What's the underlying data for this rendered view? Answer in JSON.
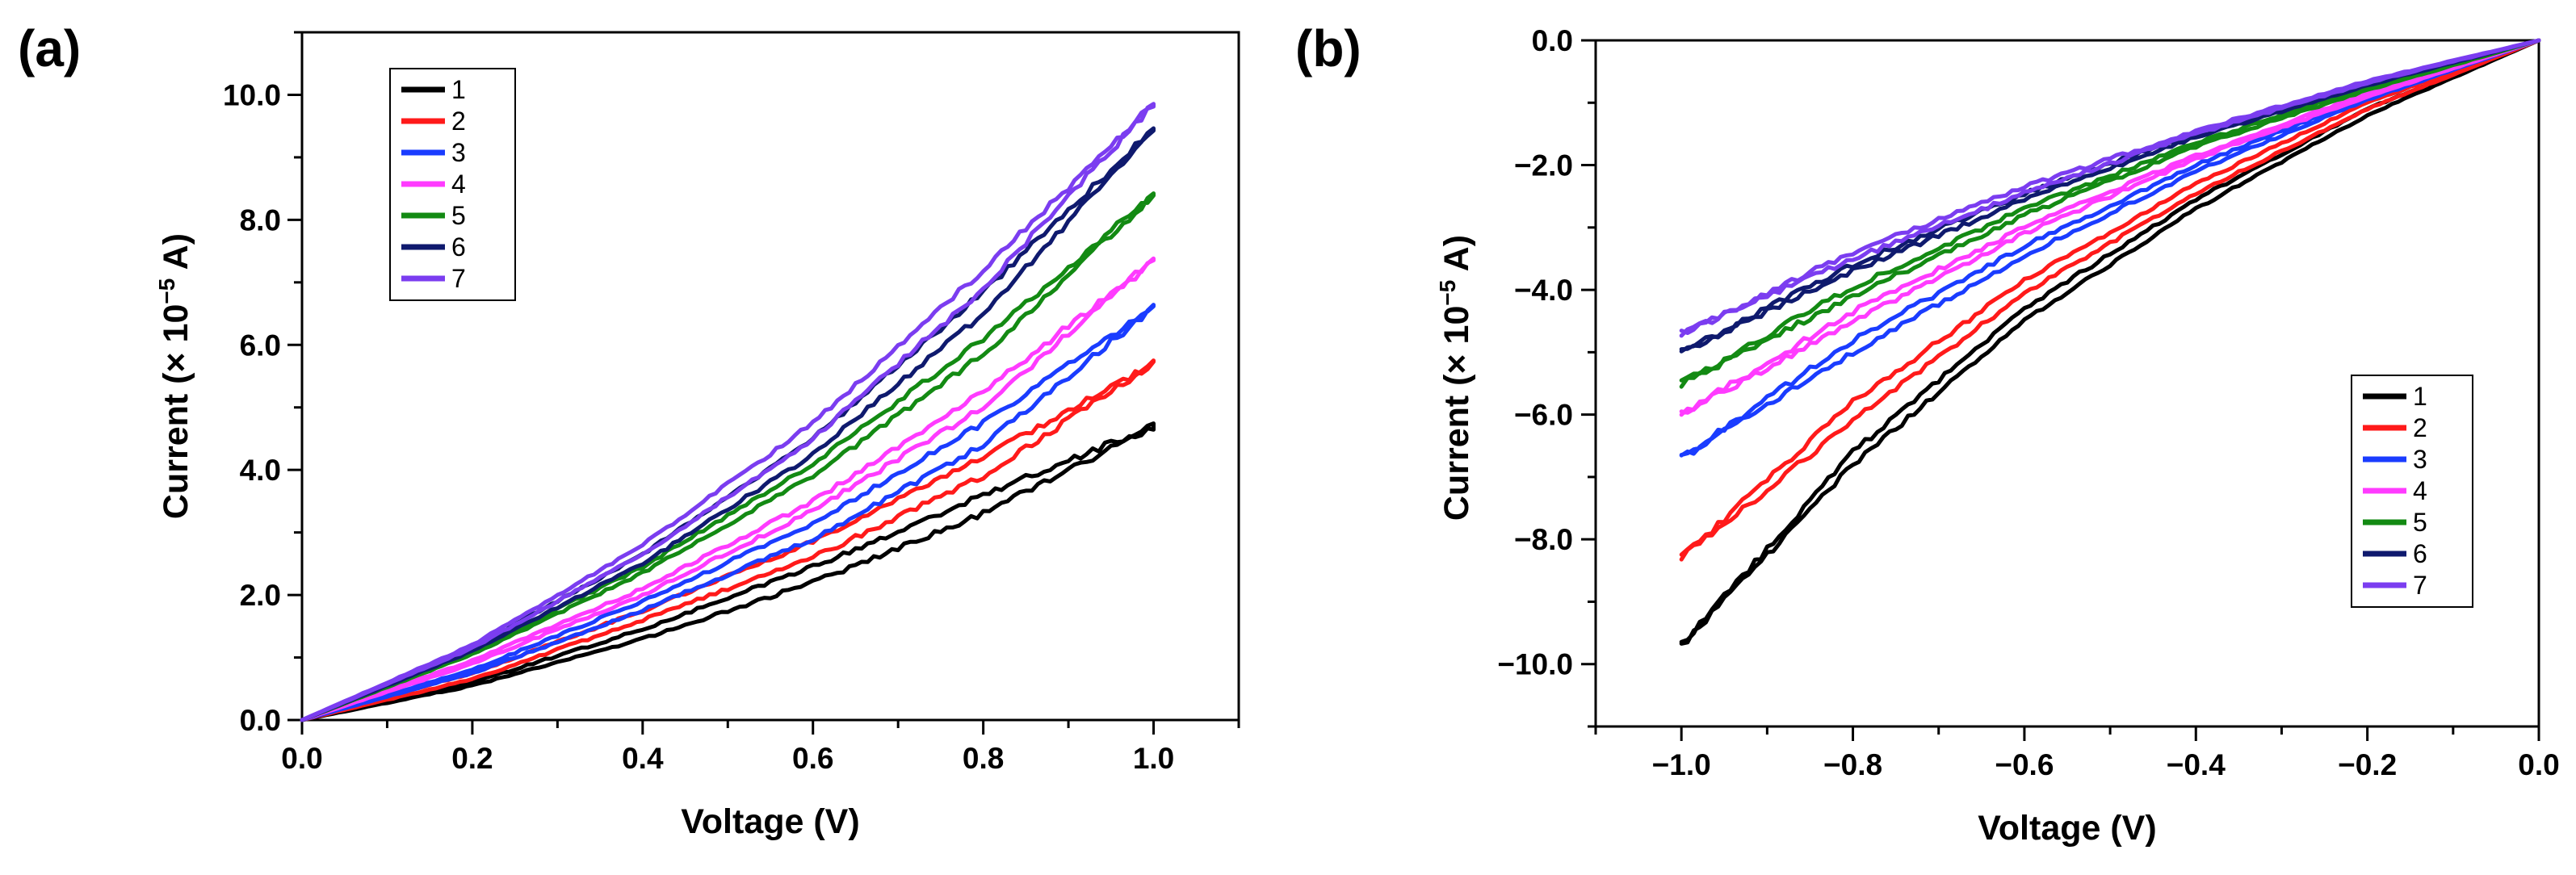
{
  "chart_data": [
    {
      "type": "line",
      "panel_label": "(a)",
      "title": "",
      "xlabel": "Voltage (V)",
      "ylabel": {
        "prefix": "Current (× 10",
        "exponent": "−5",
        "suffix": " A)"
      },
      "xlim": [
        0.0,
        1.1
      ],
      "ylim": [
        0.0,
        11.0
      ],
      "x_ticks": [
        0.0,
        0.2,
        0.4,
        0.6,
        0.8,
        1.0
      ],
      "x_tick_labels": [
        "0.0",
        "0.2",
        "0.4",
        "0.6",
        "0.8",
        "1.0"
      ],
      "y_ticks": [
        0.0,
        2.0,
        4.0,
        6.0,
        8.0,
        10.0
      ],
      "y_tick_labels": [
        "0.0",
        "2.0",
        "4.0",
        "6.0",
        "8.0",
        "10.0"
      ],
      "grid": false,
      "legend_position": "top-left",
      "series": [
        {
          "name": "1",
          "color": "#000000",
          "x": [
            0,
            0.2,
            0.4,
            0.6,
            0.8,
            1.0
          ],
          "forward": [
            0,
            0.55,
            1.3,
            2.2,
            3.3,
            4.7
          ],
          "reverse": [
            0,
            0.6,
            1.45,
            2.45,
            3.6,
            4.7
          ]
        },
        {
          "name": "2",
          "color": "#ff1a1a",
          "x": [
            0,
            0.2,
            0.4,
            0.6,
            0.8,
            1.0
          ],
          "forward": [
            0,
            0.65,
            1.6,
            2.6,
            3.9,
            5.7
          ],
          "reverse": [
            0,
            0.75,
            1.75,
            2.85,
            4.2,
            5.7
          ]
        },
        {
          "name": "3",
          "color": "#1a3cff",
          "x": [
            0,
            0.2,
            0.4,
            0.6,
            0.8,
            1.0
          ],
          "forward": [
            0,
            0.75,
            1.75,
            2.9,
            4.4,
            6.6
          ],
          "reverse": [
            0,
            0.8,
            1.9,
            3.15,
            4.75,
            6.6
          ]
        },
        {
          "name": "4",
          "color": "#ff3bff",
          "x": [
            0,
            0.2,
            0.4,
            0.6,
            0.8,
            1.0
          ],
          "forward": [
            0,
            0.9,
            2.0,
            3.35,
            5.0,
            7.35
          ],
          "reverse": [
            0,
            0.95,
            2.1,
            3.5,
            5.25,
            7.35
          ]
        },
        {
          "name": "5",
          "color": "#138a13",
          "x": [
            0,
            0.2,
            0.4,
            0.6,
            0.8,
            1.0
          ],
          "forward": [
            0,
            1.05,
            2.35,
            3.9,
            5.85,
            8.4
          ],
          "reverse": [
            0,
            1.1,
            2.45,
            4.1,
            6.1,
            8.4
          ]
        },
        {
          "name": "6",
          "color": "#0f1a6e",
          "x": [
            0,
            0.2,
            0.4,
            0.6,
            0.8,
            1.0
          ],
          "forward": [
            0,
            1.1,
            2.5,
            4.25,
            6.5,
            9.45
          ],
          "reverse": [
            0,
            1.15,
            2.65,
            4.5,
            6.85,
            9.45
          ]
        },
        {
          "name": "7",
          "color": "#7b3df0",
          "x": [
            0,
            0.2,
            0.4,
            0.6,
            0.8,
            1.0
          ],
          "forward": [
            0,
            1.15,
            2.65,
            4.5,
            6.9,
            9.85
          ],
          "reverse": [
            0,
            1.2,
            2.8,
            4.75,
            7.2,
            9.85
          ]
        }
      ]
    },
    {
      "type": "line",
      "panel_label": "(b)",
      "title": "",
      "xlabel": "Voltage (V)",
      "ylabel": {
        "prefix": "Current (× 10",
        "exponent": "−5",
        "suffix": " A)"
      },
      "xlim": [
        -1.1,
        0.0
      ],
      "ylim": [
        -11.0,
        0.0
      ],
      "x_ticks": [
        -1.0,
        -0.8,
        -0.6,
        -0.4,
        -0.2,
        0.0
      ],
      "x_tick_labels": [
        "−1.0",
        "−0.8",
        "−0.6",
        "−0.4",
        "−0.2",
        "0.0"
      ],
      "y_ticks": [
        0.0,
        -2.0,
        -4.0,
        -6.0,
        -8.0,
        -10.0
      ],
      "y_tick_labels": [
        "0.0",
        "−2.0",
        "−4.0",
        "−6.0",
        "−8.0",
        "−10.0"
      ],
      "grid": false,
      "legend_position": "bottom-right",
      "series": [
        {
          "name": "1",
          "color": "#000000",
          "x": [
            -1.0,
            -0.8,
            -0.6,
            -0.4,
            -0.2,
            0.0
          ],
          "forward": [
            -9.7,
            -6.6,
            -4.3,
            -2.55,
            -1.1,
            0
          ],
          "reverse": [
            -9.7,
            -6.8,
            -4.5,
            -2.7,
            -1.2,
            0
          ]
        },
        {
          "name": "2",
          "color": "#ff1a1a",
          "x": [
            -1.0,
            -0.8,
            -0.6,
            -0.4,
            -0.2,
            0.0
          ],
          "forward": [
            -8.3,
            -5.8,
            -3.85,
            -2.3,
            -1.0,
            0
          ],
          "reverse": [
            -8.3,
            -6.1,
            -4.05,
            -2.45,
            -1.1,
            0
          ]
        },
        {
          "name": "3",
          "color": "#1a3cff",
          "x": [
            -1.0,
            -0.8,
            -0.6,
            -0.4,
            -0.2,
            0.0
          ],
          "forward": [
            -6.7,
            -4.8,
            -3.3,
            -2.0,
            -0.9,
            0
          ],
          "reverse": [
            -6.7,
            -5.0,
            -3.45,
            -2.1,
            -0.95,
            0
          ]
        },
        {
          "name": "4",
          "color": "#ff3bff",
          "x": [
            -1.0,
            -0.8,
            -0.6,
            -0.4,
            -0.2,
            0.0
          ],
          "forward": [
            -6.0,
            -4.35,
            -3.0,
            -1.85,
            -0.85,
            0
          ],
          "reverse": [
            -6.0,
            -4.5,
            -3.1,
            -1.9,
            -0.9,
            0
          ]
        },
        {
          "name": "5",
          "color": "#138a13",
          "x": [
            -1.0,
            -0.8,
            -0.6,
            -0.4,
            -0.2,
            0.0
          ],
          "forward": [
            -5.5,
            -3.95,
            -2.7,
            -1.65,
            -0.75,
            0
          ],
          "reverse": [
            -5.5,
            -4.1,
            -2.8,
            -1.7,
            -0.8,
            0
          ]
        },
        {
          "name": "6",
          "color": "#0f1a6e",
          "x": [
            -1.0,
            -0.8,
            -0.6,
            -0.4,
            -0.2,
            0.0
          ],
          "forward": [
            -5.0,
            -3.6,
            -2.45,
            -1.5,
            -0.7,
            0
          ],
          "reverse": [
            -5.0,
            -3.7,
            -2.55,
            -1.55,
            -0.72,
            0
          ]
        },
        {
          "name": "7",
          "color": "#7b3df0",
          "x": [
            -1.0,
            -0.8,
            -0.6,
            -0.4,
            -0.2,
            0.0
          ],
          "forward": [
            -4.7,
            -3.4,
            -2.35,
            -1.45,
            -0.65,
            0
          ],
          "reverse": [
            -4.7,
            -3.5,
            -2.45,
            -1.5,
            -0.68,
            0
          ]
        }
      ]
    }
  ]
}
